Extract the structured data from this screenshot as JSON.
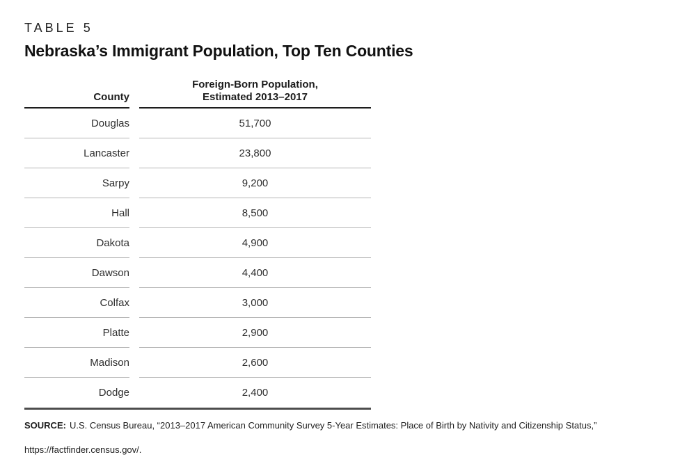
{
  "page": {
    "kicker": "TABLE 5",
    "title": "Nebraska’s Immigrant Population, Top Ten Counties"
  },
  "table": {
    "col1_header": "County",
    "col2_header_line1": "Foreign-Born Population,",
    "col2_header_line2": "Estimated 2013–2017",
    "rows": [
      {
        "county": "Douglas",
        "value": "51,700"
      },
      {
        "county": "Lancaster",
        "value": "23,800"
      },
      {
        "county": "Sarpy",
        "value": "9,200"
      },
      {
        "county": "Hall",
        "value": "8,500"
      },
      {
        "county": "Dakota",
        "value": "4,900"
      },
      {
        "county": "Dawson",
        "value": "4,400"
      },
      {
        "county": "Colfax",
        "value": "3,000"
      },
      {
        "county": "Platte",
        "value": "2,900"
      },
      {
        "county": "Madison",
        "value": "2,600"
      },
      {
        "county": "Dodge",
        "value": "2,400"
      }
    ]
  },
  "source": {
    "label": "SOURCE:",
    "line1": "U.S. Census Bureau, “2013–2017 American Community Survey 5-Year Estimates: Place of Birth by Nativity and Citizenship Status,”",
    "line2": "https://factfinder.census.gov/."
  },
  "chart_data": {
    "type": "table",
    "title": "Nebraska’s Immigrant Population, Top Ten Counties",
    "columns": [
      "County",
      "Foreign-Born Population, Estimated 2013–2017"
    ],
    "rows": [
      [
        "Douglas",
        51700
      ],
      [
        "Lancaster",
        23800
      ],
      [
        "Sarpy",
        9200
      ],
      [
        "Hall",
        8500
      ],
      [
        "Dakota",
        4900
      ],
      [
        "Dawson",
        4400
      ],
      [
        "Colfax",
        3000
      ],
      [
        "Platte",
        2900
      ],
      [
        "Madison",
        2600
      ],
      [
        "Dodge",
        2400
      ]
    ]
  }
}
